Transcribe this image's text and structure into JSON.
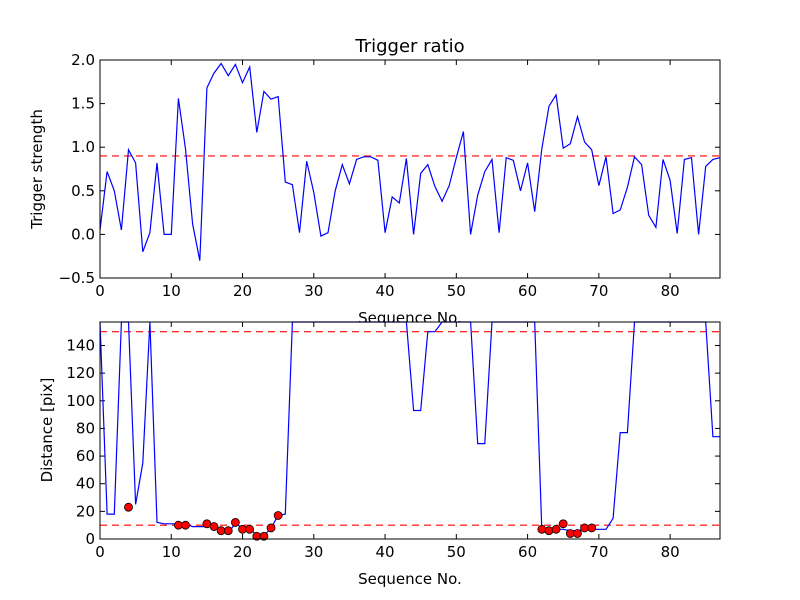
{
  "chart_data": [
    {
      "type": "line",
      "title": "Trigger ratio",
      "xlabel": "Sequence No.",
      "ylabel": "Trigger strength",
      "xlim": [
        0,
        87
      ],
      "ylim": [
        -0.5,
        2.0
      ],
      "xticks": [
        "0",
        "10",
        "20",
        "30",
        "40",
        "50",
        "60",
        "70",
        "80"
      ],
      "xtick_values": [
        0,
        10,
        20,
        30,
        40,
        50,
        60,
        70,
        80
      ],
      "yticks": [
        "−0.5",
        "0.0",
        "0.5",
        "1.0",
        "1.5",
        "2.0"
      ],
      "ytick_values": [
        -0.5,
        0.0,
        0.5,
        1.0,
        1.5,
        2.0
      ],
      "grid": false,
      "series_color": "#0000ff",
      "threshold": 0.9,
      "threshold_color": "#ff0000",
      "y": [
        0.05,
        0.72,
        0.5,
        0.05,
        0.97,
        0.82,
        -0.2,
        0.02,
        0.82,
        0.0,
        0.0,
        1.56,
        0.98,
        0.12,
        -0.3,
        1.68,
        1.85,
        1.96,
        1.82,
        1.95,
        1.74,
        1.92,
        1.17,
        1.64,
        1.55,
        1.58,
        0.6,
        0.57,
        0.02,
        0.84,
        0.48,
        -0.02,
        0.02,
        0.5,
        0.8,
        0.58,
        0.86,
        0.89,
        0.89,
        0.85,
        0.02,
        0.43,
        0.36,
        0.87,
        0.0,
        0.7,
        0.8,
        0.55,
        0.38,
        0.56,
        0.88,
        1.18,
        0.0,
        0.45,
        0.72,
        0.86,
        0.02,
        0.88,
        0.85,
        0.5,
        0.82,
        0.26,
        0.98,
        1.47,
        1.6,
        0.99,
        1.04,
        1.35,
        1.06,
        0.97,
        0.56,
        0.89,
        0.24,
        0.28,
        0.54,
        0.89,
        0.8,
        0.22,
        0.08,
        0.86,
        0.62,
        0.01,
        0.86,
        0.88,
        0.0,
        0.78,
        0.86,
        0.88
      ]
    },
    {
      "type": "line",
      "title": "",
      "xlabel": "Sequence No.",
      "ylabel": "Distance [pix]",
      "xlim": [
        0,
        87
      ],
      "ylim": [
        0,
        157
      ],
      "xticks": [
        "0",
        "10",
        "20",
        "30",
        "40",
        "50",
        "60",
        "70",
        "80"
      ],
      "xtick_values": [
        0,
        10,
        20,
        30,
        40,
        50,
        60,
        70,
        80
      ],
      "yticks": [
        "0",
        "20",
        "40",
        "60",
        "80",
        "100",
        "120",
        "140"
      ],
      "ytick_values": [
        0,
        20,
        40,
        60,
        80,
        100,
        120,
        140
      ],
      "grid": false,
      "series_color": "#0000ff",
      "thresholds": [
        150,
        10
      ],
      "threshold_color": "#ff0000",
      "y": [
        157,
        18,
        18,
        157,
        157,
        25,
        55,
        157,
        12,
        11,
        11,
        11,
        11,
        9,
        9,
        9,
        9,
        6,
        5,
        11,
        8,
        7,
        3,
        2,
        8,
        17,
        18,
        157,
        157,
        157,
        157,
        157,
        157,
        157,
        157,
        157,
        157,
        157,
        157,
        157,
        157,
        157,
        157,
        157,
        93,
        93,
        150,
        150,
        157,
        157,
        157,
        157,
        157,
        69,
        69,
        157,
        157,
        157,
        157,
        157,
        157,
        157,
        7,
        7,
        7,
        7,
        6,
        6,
        7,
        7,
        7,
        7,
        15,
        77,
        77,
        157,
        157,
        157,
        157,
        157,
        157,
        157,
        157,
        157,
        157,
        157,
        74,
        74
      ],
      "markers": {
        "color": "#ff0000",
        "edge_color": "#000000",
        "x": [
          4,
          11,
          12,
          15,
          16,
          17,
          18,
          19,
          20,
          21,
          22,
          23,
          24,
          25,
          62,
          63,
          64,
          65,
          66,
          67,
          68,
          69
        ],
        "y": [
          23,
          10,
          10,
          11,
          9,
          6,
          6,
          12,
          7,
          7,
          2,
          2,
          8,
          17,
          7,
          6,
          7,
          11,
          4,
          4,
          8,
          8
        ]
      }
    }
  ]
}
